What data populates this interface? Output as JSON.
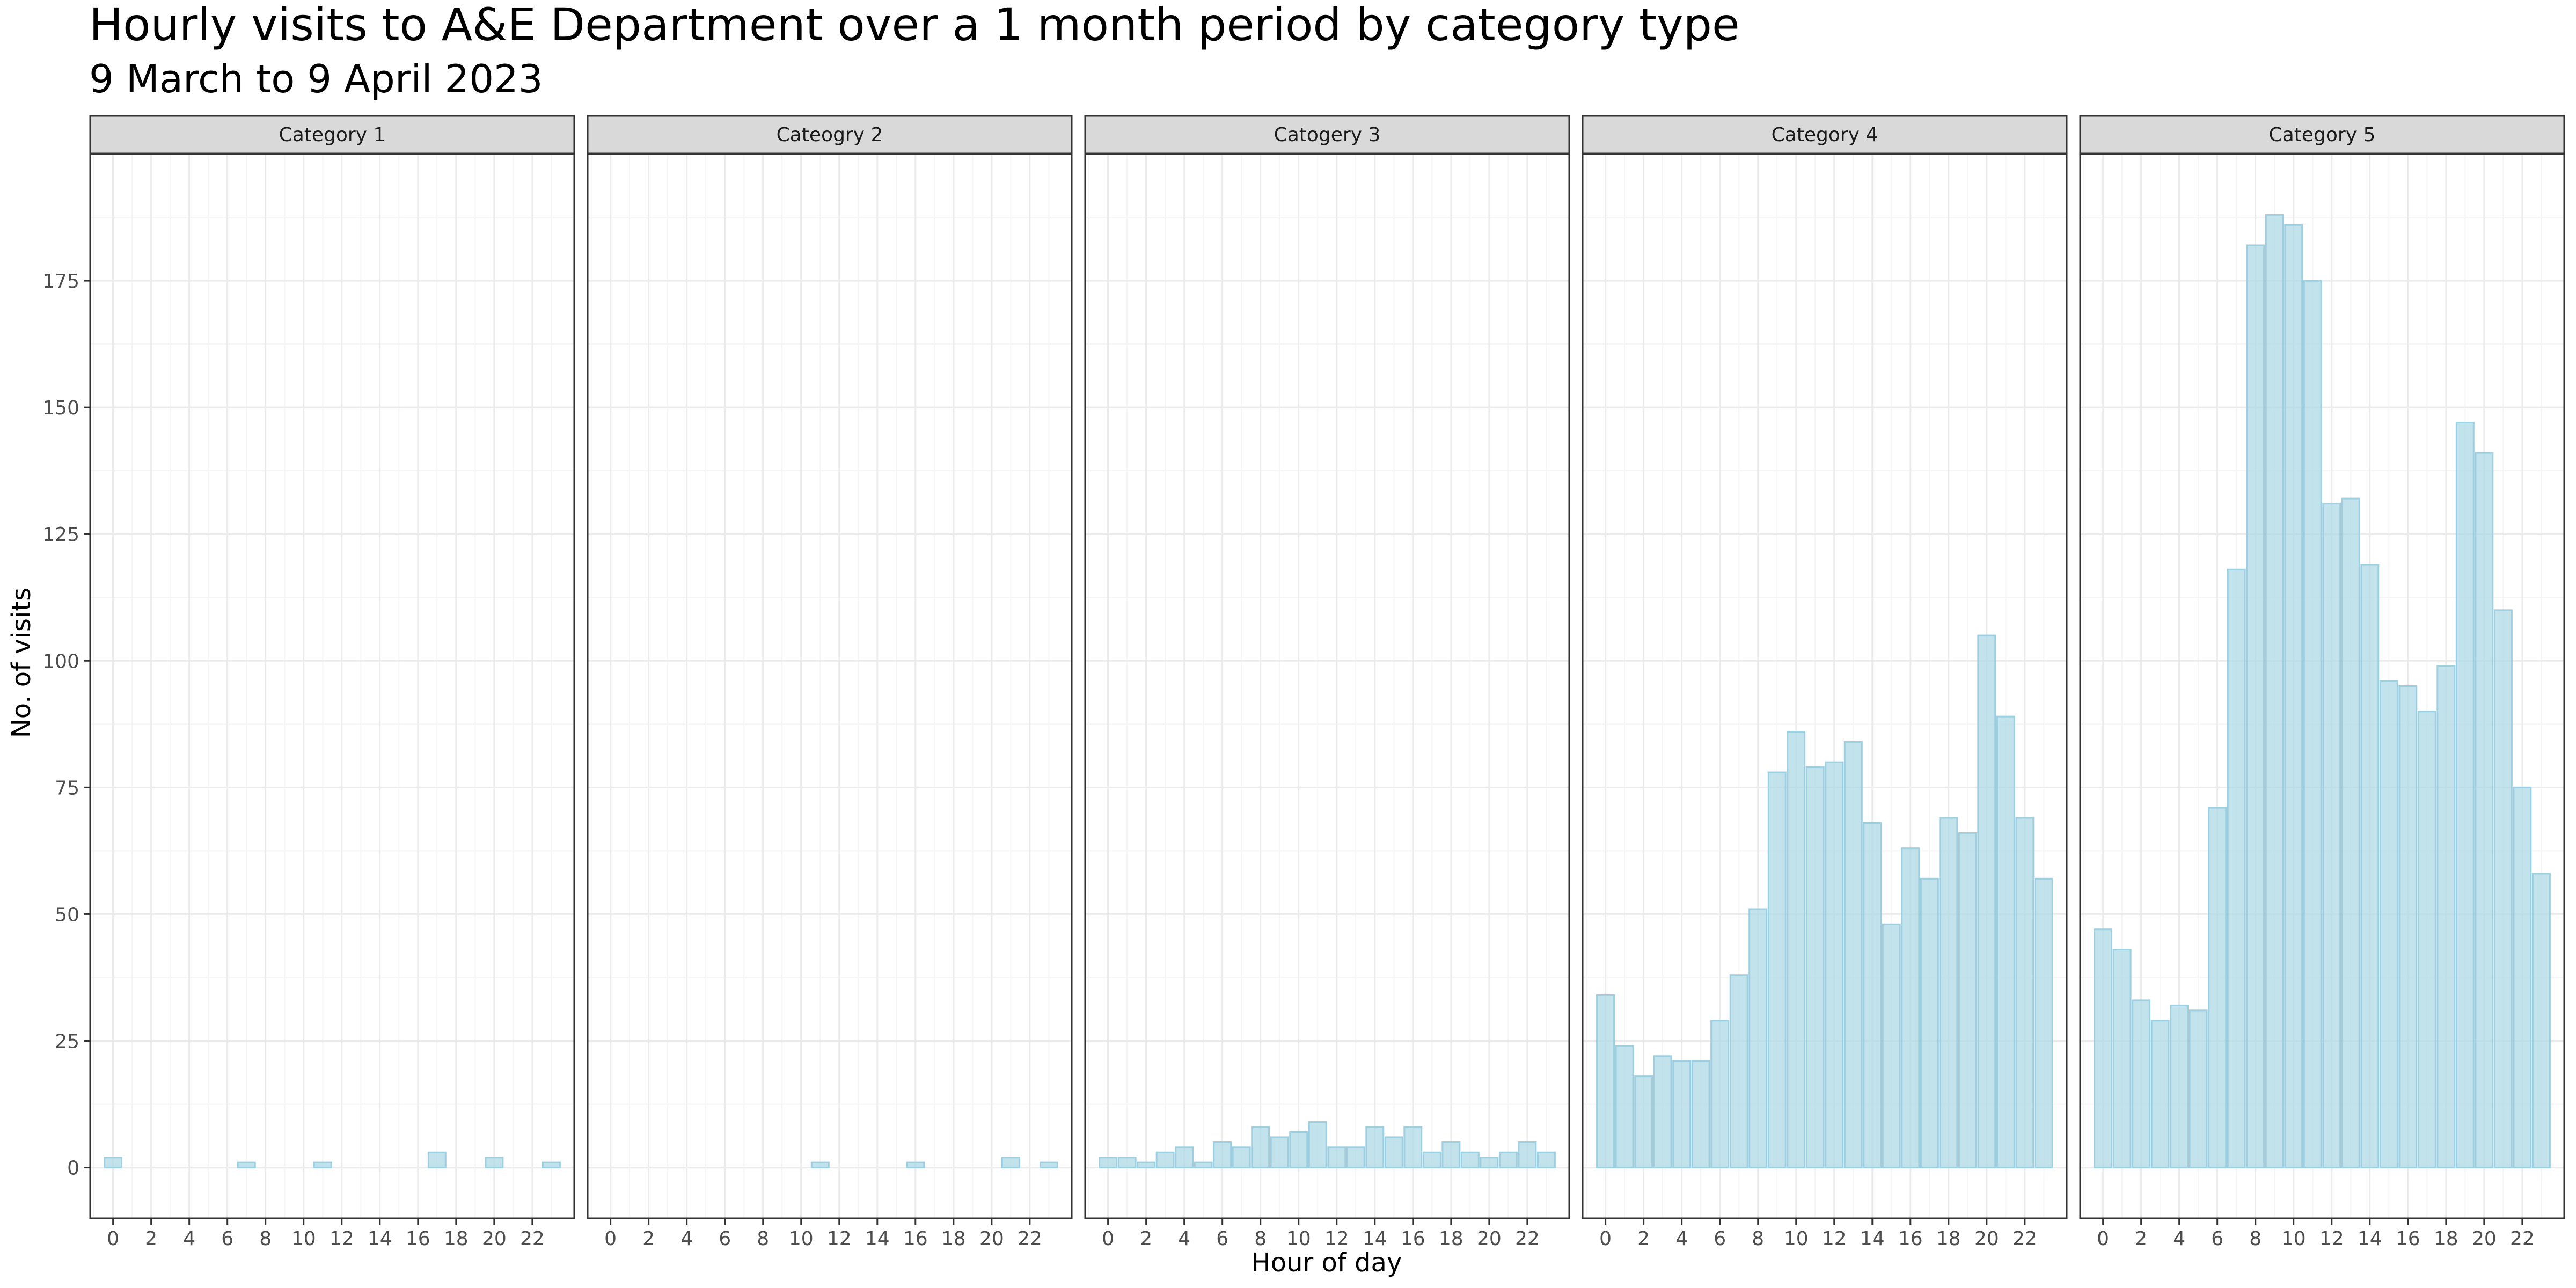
{
  "colors": {
    "bar_fill": "#add8e6",
    "bar_stroke": "#9ecfe0",
    "strip_fill": "#d9d9d9",
    "panel_border": "#333333",
    "grid_major": "#ebebeb",
    "grid_minor": "#f5f5f5"
  },
  "chart_data": {
    "type": "bar",
    "title": "Hourly visits to A&E Department over a 1 month period by category type",
    "subtitle": "9 March to 9 April 2023",
    "xlabel": "Hour of day",
    "ylabel": "No. of visits",
    "ylim": [
      -10,
      200
    ],
    "y_ticks": [
      0,
      25,
      50,
      75,
      100,
      125,
      150,
      175
    ],
    "y_tick_labels": [
      "0",
      "25",
      "50",
      "75",
      "100",
      "125",
      "150",
      "175"
    ],
    "x_ticks": [
      0,
      2,
      4,
      6,
      8,
      10,
      12,
      14,
      16,
      18,
      20,
      22
    ],
    "x_tick_labels": [
      "0",
      "2",
      "4",
      "6",
      "8",
      "10",
      "12",
      "14",
      "16",
      "18",
      "20",
      "22"
    ],
    "grid": true,
    "legend": "none",
    "categories": [
      0,
      1,
      2,
      3,
      4,
      5,
      6,
      7,
      8,
      9,
      10,
      11,
      12,
      13,
      14,
      15,
      16,
      17,
      18,
      19,
      20,
      21,
      22,
      23
    ],
    "series": [
      {
        "name": "Category 1",
        "values": [
          2,
          0,
          0,
          0,
          0,
          0,
          0,
          1,
          0,
          0,
          0,
          1,
          0,
          0,
          0,
          0,
          0,
          3,
          0,
          0,
          2,
          0,
          0,
          1
        ]
      },
      {
        "name": "Cateogry 2",
        "values": [
          0,
          0,
          0,
          0,
          0,
          0,
          0,
          0,
          0,
          0,
          0,
          1,
          0,
          0,
          0,
          0,
          1,
          0,
          0,
          0,
          0,
          2,
          0,
          1
        ]
      },
      {
        "name": "Catogery 3",
        "values": [
          2,
          2,
          1,
          3,
          4,
          1,
          5,
          4,
          8,
          6,
          7,
          9,
          4,
          4,
          8,
          6,
          8,
          3,
          5,
          3,
          2,
          3,
          5,
          3
        ]
      },
      {
        "name": "Category 4",
        "values": [
          34,
          24,
          18,
          22,
          21,
          21,
          29,
          38,
          51,
          78,
          86,
          79,
          80,
          84,
          68,
          48,
          63,
          57,
          69,
          66,
          105,
          89,
          69,
          57
        ]
      },
      {
        "name": "Category 5",
        "values": [
          47,
          43,
          33,
          29,
          32,
          31,
          71,
          118,
          182,
          188,
          186,
          175,
          131,
          132,
          119,
          96,
          95,
          90,
          99,
          147,
          141,
          110,
          75,
          58
        ]
      }
    ]
  }
}
